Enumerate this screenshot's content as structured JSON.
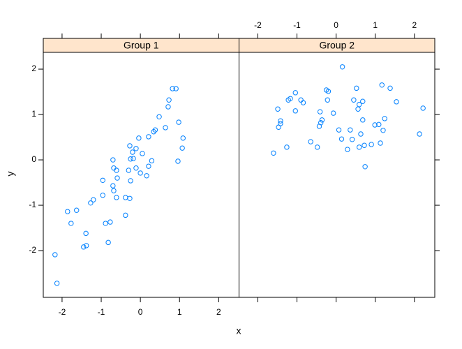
{
  "chart_data": {
    "type": "scatter",
    "xlabel": "x",
    "ylabel": "y",
    "color": "#0080ff",
    "strip_color": "#ffe5cc",
    "xlim": [
      -2.48,
      2.52
    ],
    "ylim": [
      -3.03,
      2.37
    ],
    "xticks": [
      -2,
      -1,
      0,
      1,
      2
    ],
    "yticks": [
      -2,
      -1,
      0,
      1,
      2
    ],
    "panels": [
      {
        "strip": "Group 1",
        "x": [
          -2.18,
          -2.13,
          -1.86,
          -1.77,
          -1.63,
          -1.45,
          -1.38,
          -1.39,
          -1.27,
          -1.2,
          -0.96,
          -0.96,
          -0.89,
          -0.82,
          -0.77,
          -0.7,
          -0.7,
          -0.68,
          -0.68,
          -0.61,
          -0.59,
          -0.61,
          -0.38,
          -0.38,
          -0.3,
          -0.27,
          -0.25,
          -0.27,
          -0.25,
          -0.2,
          -0.18,
          -0.11,
          -0.11,
          -0.04,
          0,
          0.05,
          0.16,
          0.21,
          0.29,
          0.21,
          0.34,
          0.38,
          0.48,
          0.64,
          0.71,
          0.73,
          0.82,
          0.91,
          0.98,
          0.96,
          1.07,
          1.09
        ],
        "y": [
          -2.09,
          -2.72,
          -1.14,
          -1.4,
          -1.11,
          -1.92,
          -1.89,
          -1.62,
          -0.95,
          -0.88,
          -0.45,
          -0.78,
          -1.4,
          -1.82,
          -1.37,
          0,
          -0.57,
          -0.18,
          -0.68,
          -0.23,
          -0.4,
          -0.83,
          -0.83,
          -1.22,
          -0.23,
          0.31,
          -0.46,
          -0.85,
          0.02,
          0.17,
          0.03,
          -0.18,
          0.25,
          0.48,
          -0.29,
          0.14,
          -0.35,
          -0.14,
          -0.02,
          0.51,
          0.62,
          0.66,
          0.95,
          0.71,
          1.17,
          1.32,
          1.57,
          1.57,
          0.83,
          -0.03,
          0.26,
          0.48
        ]
      },
      {
        "strip": "Group 2",
        "x": [
          -1.6,
          -1.49,
          -1.47,
          -1.42,
          -1.42,
          -1.26,
          -1.22,
          -1.17,
          -1.04,
          -1.04,
          -0.9,
          -0.84,
          -0.65,
          -0.48,
          -0.43,
          -0.41,
          -0.39,
          -0.36,
          -0.25,
          -0.2,
          -0.22,
          -0.07,
          0.07,
          0.16,
          0.14,
          0.29,
          0.36,
          0.41,
          0.45,
          0.52,
          0.56,
          0.59,
          0.59,
          0.63,
          0.68,
          0.72,
          0.74,
          0.68,
          0.9,
          0.99,
          1.09,
          1.13,
          1.17,
          1.2,
          1.24,
          1.38,
          1.54,
          2.13,
          2.22
        ],
        "y": [
          0.15,
          1.12,
          0.72,
          0.8,
          0.86,
          0.28,
          1.32,
          1.35,
          1.48,
          1.08,
          1.32,
          1.26,
          0.4,
          0.28,
          0.74,
          1.06,
          0.82,
          0.88,
          1.54,
          1.51,
          1.32,
          1.03,
          0.66,
          2.05,
          0.46,
          0.23,
          0.66,
          0.45,
          1.32,
          1.58,
          1.12,
          1.22,
          0.28,
          0.57,
          0.88,
          0.32,
          -0.15,
          1.29,
          0.34,
          0.77,
          0.78,
          0.37,
          1.65,
          0.65,
          0.91,
          1.58,
          1.28,
          0.57,
          1.14
        ]
      }
    ]
  }
}
